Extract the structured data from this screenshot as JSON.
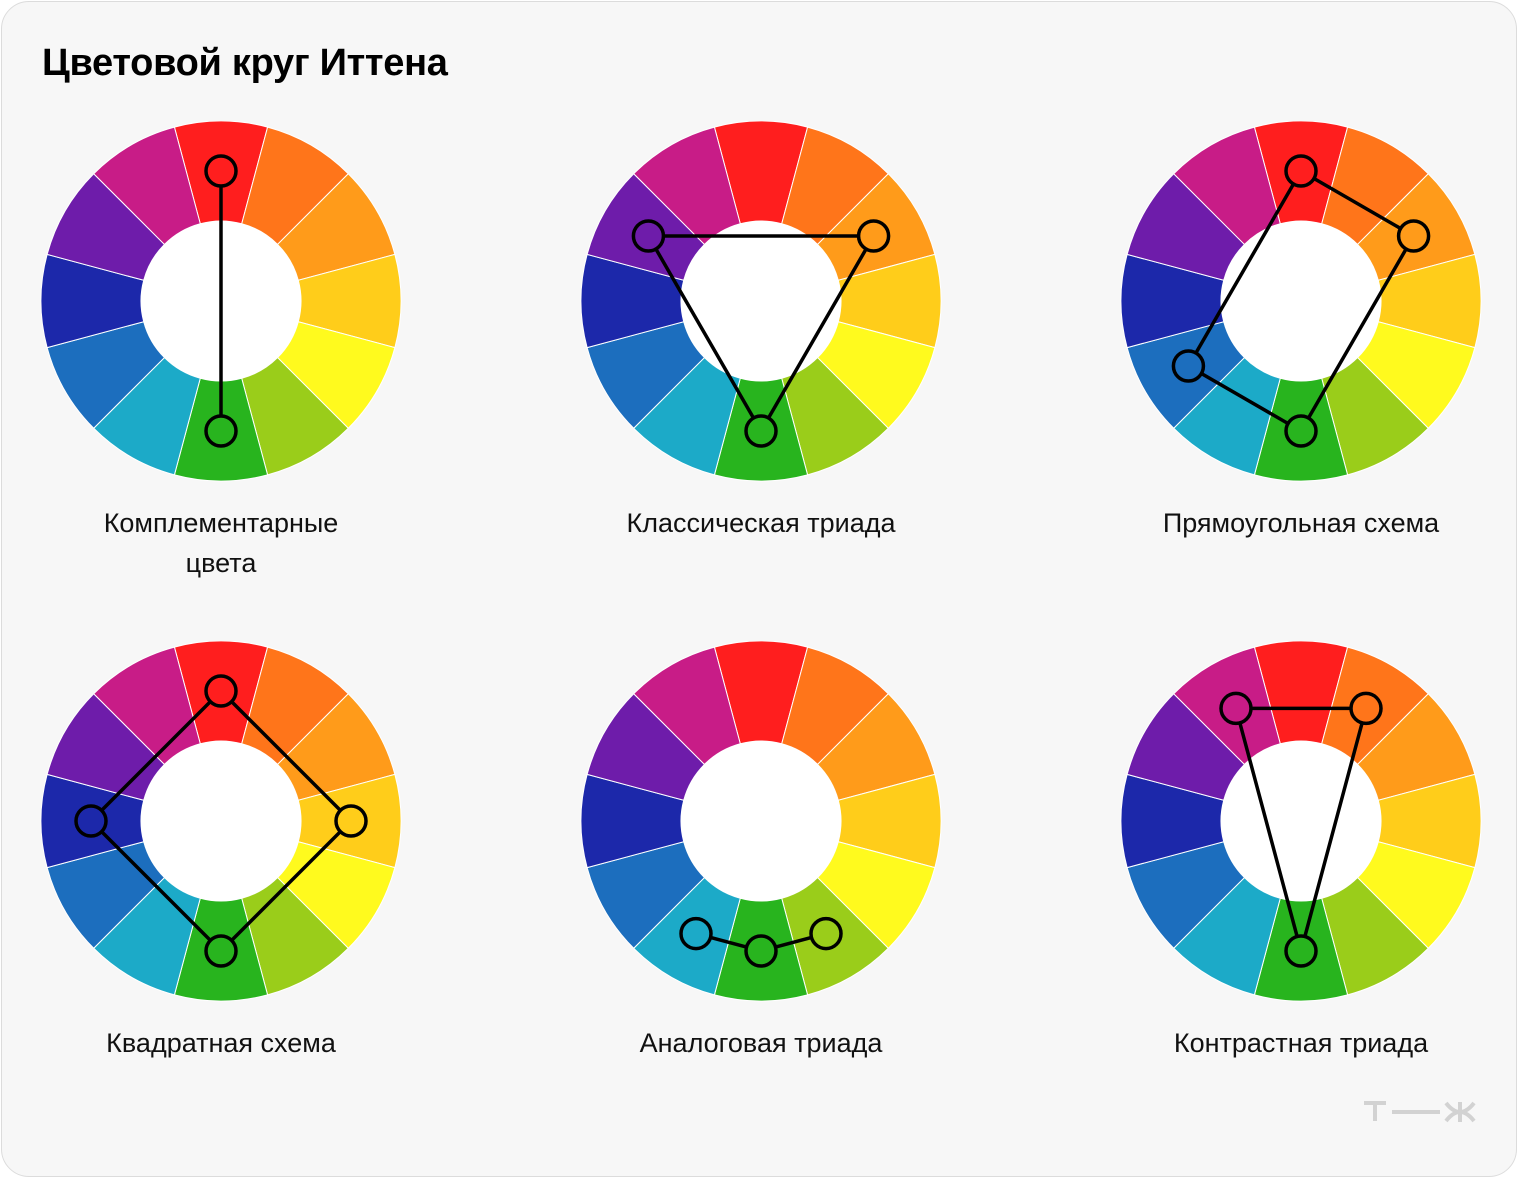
{
  "title": "Цветовой круг Иттена",
  "wheel": {
    "segments": [
      {
        "name": "red",
        "color": "#FF1E1E"
      },
      {
        "name": "red-orange",
        "color": "#FF751A"
      },
      {
        "name": "orange",
        "color": "#FF9B1A"
      },
      {
        "name": "yellow-orange",
        "color": "#FFCD1A"
      },
      {
        "name": "yellow",
        "color": "#FFFA1E"
      },
      {
        "name": "yellow-green",
        "color": "#9ACD1A"
      },
      {
        "name": "green",
        "color": "#28B41E"
      },
      {
        "name": "blue-green",
        "color": "#1CAAC8"
      },
      {
        "name": "blue",
        "color": "#1C6EBE"
      },
      {
        "name": "blue-violet",
        "color": "#1C28AA"
      },
      {
        "name": "violet",
        "color": "#6E1CAA"
      },
      {
        "name": "red-violet",
        "color": "#C81C87"
      }
    ]
  },
  "schemes": [
    {
      "id": "complementary",
      "label": "Комплементарные\nцвета",
      "points": [
        0,
        6
      ],
      "closed": false
    },
    {
      "id": "classic-triad",
      "label": "Классическая триада",
      "points": [
        10,
        2,
        6
      ],
      "closed": true
    },
    {
      "id": "rectangular",
      "label": "Прямоугольная схема",
      "points": [
        0,
        2,
        6,
        8
      ],
      "closed": true
    },
    {
      "id": "square",
      "label": "Квадратная схема",
      "points": [
        0,
        3,
        6,
        9
      ],
      "closed": true
    },
    {
      "id": "analog-triad",
      "label": "Аналоговая триада",
      "points": [
        7,
        6,
        5
      ],
      "closed": false
    },
    {
      "id": "contrast-triad",
      "label": "Контрастная триада",
      "points": [
        11,
        1,
        6
      ],
      "closed": true
    }
  ],
  "logo": "т—ж"
}
